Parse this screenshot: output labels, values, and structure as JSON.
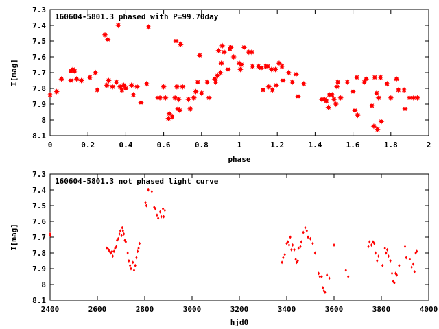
{
  "chart_data": [
    {
      "type": "scatter",
      "title": "160604-5801.3 phased with P=99.70day",
      "xlabel": "phase",
      "ylabel": "I[mag]",
      "xlim": [
        0,
        2
      ],
      "ylim": [
        7.3,
        8.1
      ],
      "y_inverted": true,
      "grid": false,
      "marker": "filled-star",
      "color": "#ff0000",
      "xticks": [
        "0",
        "0.2",
        "0.4",
        "0.6",
        "0.8",
        "1",
        "1.2",
        "1.4",
        "1.6",
        "1.8",
        "2"
      ],
      "yticks": [
        "7.3",
        "7.4",
        "7.5",
        "7.6",
        "7.7",
        "7.8",
        "7.9",
        "8",
        "8.1"
      ],
      "points": [
        [
          0.0,
          7.84
        ],
        [
          0.035,
          7.82
        ],
        [
          0.06,
          7.74
        ],
        [
          0.11,
          7.75
        ],
        [
          0.11,
          7.69
        ],
        [
          0.12,
          7.68
        ],
        [
          0.13,
          7.69
        ],
        [
          0.14,
          7.74
        ],
        [
          0.165,
          7.75
        ],
        [
          0.21,
          7.73
        ],
        [
          0.24,
          7.7
        ],
        [
          0.25,
          7.81
        ],
        [
          0.29,
          7.46
        ],
        [
          0.3,
          7.78
        ],
        [
          0.31,
          7.75
        ],
        [
          0.305,
          7.49
        ],
        [
          0.33,
          7.79
        ],
        [
          0.35,
          7.76
        ],
        [
          0.36,
          7.4
        ],
        [
          0.37,
          7.79
        ],
        [
          0.38,
          7.81
        ],
        [
          0.39,
          7.78
        ],
        [
          0.4,
          7.8
        ],
        [
          0.43,
          7.78
        ],
        [
          0.44,
          7.84
        ],
        [
          0.46,
          7.79
        ],
        [
          0.48,
          7.89
        ],
        [
          0.51,
          7.77
        ],
        [
          0.52,
          7.41
        ],
        [
          0.57,
          7.86
        ],
        [
          0.58,
          7.86
        ],
        [
          0.6,
          7.79
        ],
        [
          0.61,
          7.86
        ],
        [
          0.625,
          7.99
        ],
        [
          0.63,
          7.96
        ],
        [
          0.645,
          7.98
        ],
        [
          0.66,
          7.86
        ],
        [
          0.665,
          7.5
        ],
        [
          0.67,
          7.79
        ],
        [
          0.675,
          7.93
        ],
        [
          0.68,
          7.87
        ],
        [
          0.685,
          7.94
        ],
        [
          0.69,
          7.52
        ],
        [
          0.7,
          7.79
        ],
        [
          0.73,
          7.87
        ],
        [
          0.74,
          7.93
        ],
        [
          0.76,
          7.86
        ],
        [
          0.77,
          7.82
        ],
        [
          0.78,
          7.76
        ],
        [
          0.79,
          7.59
        ],
        [
          0.8,
          7.83
        ],
        [
          0.83,
          7.76
        ],
        [
          0.84,
          7.86
        ],
        [
          0.87,
          7.74
        ],
        [
          0.875,
          7.76
        ],
        [
          0.885,
          7.72
        ],
        [
          0.89,
          7.56
        ],
        [
          0.9,
          7.7
        ],
        [
          0.905,
          7.64
        ],
        [
          0.91,
          7.53
        ],
        [
          0.92,
          7.57
        ],
        [
          0.94,
          7.68
        ],
        [
          0.95,
          7.55
        ],
        [
          0.955,
          7.54
        ],
        [
          0.97,
          7.6
        ],
        [
          1.0,
          7.64
        ],
        [
          1.005,
          7.68
        ],
        [
          1.01,
          7.65
        ],
        [
          1.025,
          7.54
        ],
        [
          1.05,
          7.57
        ],
        [
          1.065,
          7.57
        ],
        [
          1.07,
          7.66
        ],
        [
          1.1,
          7.66
        ],
        [
          1.115,
          7.67
        ],
        [
          1.125,
          7.81
        ],
        [
          1.14,
          7.66
        ],
        [
          1.15,
          7.66
        ],
        [
          1.155,
          7.79
        ],
        [
          1.17,
          7.68
        ],
        [
          1.175,
          7.81
        ],
        [
          1.19,
          7.68
        ],
        [
          1.195,
          7.78
        ],
        [
          1.21,
          7.64
        ],
        [
          1.225,
          7.66
        ],
        [
          1.23,
          7.75
        ],
        [
          1.26,
          7.7
        ],
        [
          1.28,
          7.76
        ],
        [
          1.3,
          7.71
        ],
        [
          1.31,
          7.85
        ],
        [
          1.34,
          7.77
        ],
        [
          1.435,
          7.87
        ],
        [
          1.45,
          7.87
        ],
        [
          1.46,
          7.88
        ],
        [
          1.47,
          7.92
        ],
        [
          1.475,
          7.84
        ],
        [
          1.49,
          7.84
        ],
        [
          1.5,
          7.87
        ],
        [
          1.51,
          7.9
        ],
        [
          1.515,
          7.79
        ],
        [
          1.52,
          7.76
        ],
        [
          1.535,
          7.86
        ],
        [
          1.57,
          7.76
        ],
        [
          1.6,
          7.82
        ],
        [
          1.61,
          7.94
        ],
        [
          1.62,
          7.73
        ],
        [
          1.625,
          7.97
        ],
        [
          1.66,
          7.76
        ],
        [
          1.67,
          7.74
        ],
        [
          1.7,
          7.91
        ],
        [
          1.71,
          8.04
        ],
        [
          1.715,
          7.73
        ],
        [
          1.725,
          7.83
        ],
        [
          1.73,
          8.06
        ],
        [
          1.735,
          7.86
        ],
        [
          1.745,
          7.73
        ],
        [
          1.75,
          8.01
        ],
        [
          1.78,
          7.77
        ],
        [
          1.8,
          7.86
        ],
        [
          1.83,
          7.74
        ],
        [
          1.84,
          7.81
        ],
        [
          1.87,
          7.81
        ],
        [
          1.875,
          7.93
        ],
        [
          1.9,
          7.86
        ],
        [
          1.92,
          7.86
        ],
        [
          1.94,
          7.86
        ]
      ]
    },
    {
      "type": "scatter",
      "title": "160604-5801.3 not phased light curve",
      "xlabel": "hjd0",
      "ylabel": "I[mag]",
      "xlim": [
        2400,
        4000
      ],
      "ylim": [
        7.3,
        8.1
      ],
      "y_inverted": true,
      "grid": false,
      "marker": "small-dot",
      "color": "#ff0000",
      "xticks": [
        "2400",
        "2600",
        "2800",
        "3000",
        "3200",
        "3400",
        "3600",
        "3800",
        "4000"
      ],
      "yticks": [
        "7.3",
        "7.4",
        "7.5",
        "7.6",
        "7.7",
        "7.8",
        "7.9",
        "8",
        "8.1"
      ],
      "points": [
        [
          2400,
          7.68
        ],
        [
          2401,
          7.69
        ],
        [
          2640,
          7.77
        ],
        [
          2647,
          7.78
        ],
        [
          2652,
          7.79
        ],
        [
          2657,
          7.8
        ],
        [
          2662,
          7.79
        ],
        [
          2665,
          7.82
        ],
        [
          2670,
          7.79
        ],
        [
          2675,
          7.77
        ],
        [
          2680,
          7.76
        ],
        [
          2683,
          7.72
        ],
        [
          2688,
          7.71
        ],
        [
          2693,
          7.68
        ],
        [
          2697,
          7.66
        ],
        [
          2702,
          7.69
        ],
        [
          2705,
          7.64
        ],
        [
          2708,
          7.66
        ],
        [
          2712,
          7.68
        ],
        [
          2716,
          7.72
        ],
        [
          2720,
          7.73
        ],
        [
          2728,
          7.8
        ],
        [
          2733,
          7.85
        ],
        [
          2738,
          7.88
        ],
        [
          2742,
          7.9
        ],
        [
          2750,
          7.86
        ],
        [
          2755,
          7.91
        ],
        [
          2760,
          7.88
        ],
        [
          2765,
          7.83
        ],
        [
          2770,
          7.79
        ],
        [
          2774,
          7.77
        ],
        [
          2778,
          7.74
        ],
        [
          2803,
          7.48
        ],
        [
          2807,
          7.5
        ],
        [
          2815,
          7.4
        ],
        [
          2830,
          7.41
        ],
        [
          2840,
          7.51
        ],
        [
          2845,
          7.52
        ],
        [
          2852,
          7.56
        ],
        [
          2857,
          7.58
        ],
        [
          2865,
          7.54
        ],
        [
          2870,
          7.57
        ],
        [
          2877,
          7.52
        ],
        [
          2880,
          7.57
        ],
        [
          2885,
          7.53
        ],
        [
          3380,
          7.86
        ],
        [
          3385,
          7.83
        ],
        [
          3392,
          7.81
        ],
        [
          3400,
          7.74
        ],
        [
          3405,
          7.73
        ],
        [
          3410,
          7.75
        ],
        [
          3415,
          7.7
        ],
        [
          3420,
          7.78
        ],
        [
          3425,
          7.75
        ],
        [
          3432,
          7.78
        ],
        [
          3438,
          7.84
        ],
        [
          3442,
          7.86
        ],
        [
          3447,
          7.85
        ],
        [
          3450,
          7.77
        ],
        [
          3458,
          7.76
        ],
        [
          3462,
          7.73
        ],
        [
          3470,
          7.67
        ],
        [
          3478,
          7.64
        ],
        [
          3485,
          7.66
        ],
        [
          3490,
          7.7
        ],
        [
          3500,
          7.71
        ],
        [
          3510,
          7.74
        ],
        [
          3520,
          7.8
        ],
        [
          3535,
          7.93
        ],
        [
          3540,
          7.95
        ],
        [
          3548,
          7.95
        ],
        [
          3553,
          8.02
        ],
        [
          3557,
          8.04
        ],
        [
          3562,
          8.05
        ],
        [
          3570,
          7.94
        ],
        [
          3580,
          7.96
        ],
        [
          3600,
          7.75
        ],
        [
          3650,
          7.91
        ],
        [
          3660,
          7.95
        ],
        [
          3745,
          7.76
        ],
        [
          3750,
          7.73
        ],
        [
          3758,
          7.75
        ],
        [
          3765,
          7.73
        ],
        [
          3770,
          7.74
        ],
        [
          3775,
          7.8
        ],
        [
          3782,
          7.85
        ],
        [
          3788,
          7.82
        ],
        [
          3805,
          7.88
        ],
        [
          3815,
          7.77
        ],
        [
          3820,
          7.8
        ],
        [
          3825,
          7.78
        ],
        [
          3830,
          7.82
        ],
        [
          3838,
          7.85
        ],
        [
          3845,
          7.93
        ],
        [
          3850,
          7.98
        ],
        [
          3855,
          7.99
        ],
        [
          3860,
          7.93
        ],
        [
          3865,
          7.94
        ],
        [
          3875,
          7.88
        ],
        [
          3920,
          7.84
        ],
        [
          3928,
          7.89
        ],
        [
          3935,
          7.87
        ],
        [
          3940,
          7.92
        ],
        [
          3945,
          7.8
        ],
        [
          3950,
          7.79
        ],
        [
          3905,
          7.83
        ],
        [
          3900,
          7.76
        ]
      ]
    }
  ]
}
